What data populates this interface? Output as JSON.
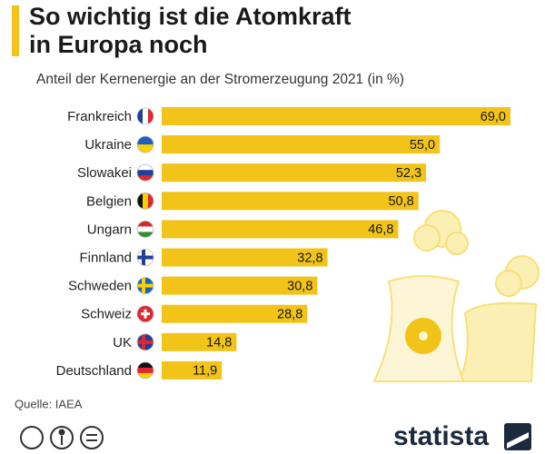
{
  "chart_data": {
    "type": "bar",
    "orientation": "horizontal",
    "title": [
      "So wichtig ist die Atomkraft",
      "in Europa noch"
    ],
    "subtitle": "Anteil der Kernenergie an der Stromerzeugung 2021 (in %)",
    "categories": [
      "Frankreich",
      "Ukraine",
      "Slowakei",
      "Belgien",
      "Ungarn",
      "Finnland",
      "Schweden",
      "Schweiz",
      "UK",
      "Deutschland"
    ],
    "values": [
      69.0,
      55.0,
      52.3,
      50.8,
      46.8,
      32.8,
      30.8,
      28.8,
      14.8,
      11.9
    ],
    "value_labels": [
      "69,0",
      "55,0",
      "52,3",
      "50,8",
      "46,8",
      "32,8",
      "30,8",
      "28,8",
      "14,8",
      "11,9"
    ],
    "color": "#f2c318",
    "source": "Quelle: IAEA",
    "logo": "statista"
  }
}
